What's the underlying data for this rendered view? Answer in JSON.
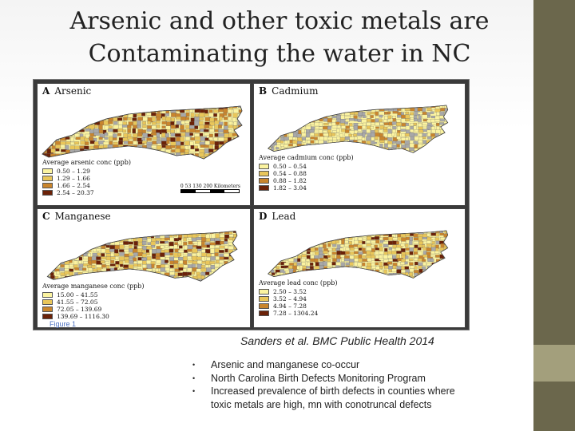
{
  "slide": {
    "title_line1": "Arsenic and other toxic metals are",
    "title_line2": "Contaminating the water in NC",
    "figure_link": "Figure 1",
    "citation": "Sanders et al. BMC Public Health 2014",
    "bullets": [
      "Arsenic and manganese co-occur",
      "North Carolina Birth Defects Monitoring Program",
      "Increased prevalence of birth defects in counties where toxic metals are high, mn with conotruncal defects"
    ],
    "bullet_marker": "•"
  },
  "colors": {
    "side_bar": "#6b674c",
    "side_accent": "#a39f7c",
    "class_1": "#fbf3a0",
    "class_2": "#e9c65a",
    "class_3": "#c9852d",
    "class_4": "#6b2208",
    "no_data": "#a8a8a8"
  },
  "panels": [
    {
      "letter": "A",
      "metal": "Arsenic",
      "legend_title": "Average arsenic conc (ppb)",
      "classes": [
        "0.50 – 1.29",
        "1.29 – 1.66",
        "1.66 – 2.54",
        "2.54 – 20.37"
      ],
      "scale_labels": "0   53  130     200 Kilometers"
    },
    {
      "letter": "B",
      "metal": "Cadmium",
      "legend_title": "Average cadmium conc (ppb)",
      "classes": [
        "0.50 – 0.54",
        "0.54 – 0.88",
        "0.88 – 1.82",
        "1.82 – 3.04"
      ]
    },
    {
      "letter": "C",
      "metal": "Manganese",
      "legend_title": "Average manganese conc (ppb)",
      "classes": [
        "15.00 – 41.55",
        "41.55 – 72.05",
        "72.05 – 139.69",
        "139.69 – 1116.30"
      ]
    },
    {
      "letter": "D",
      "metal": "Lead",
      "legend_title": "Average lead conc (ppb)",
      "classes": [
        "2.50 – 3.52",
        "3.52 – 4.94",
        "4.94 – 7.28",
        "7.28 – 1304.24"
      ]
    }
  ]
}
